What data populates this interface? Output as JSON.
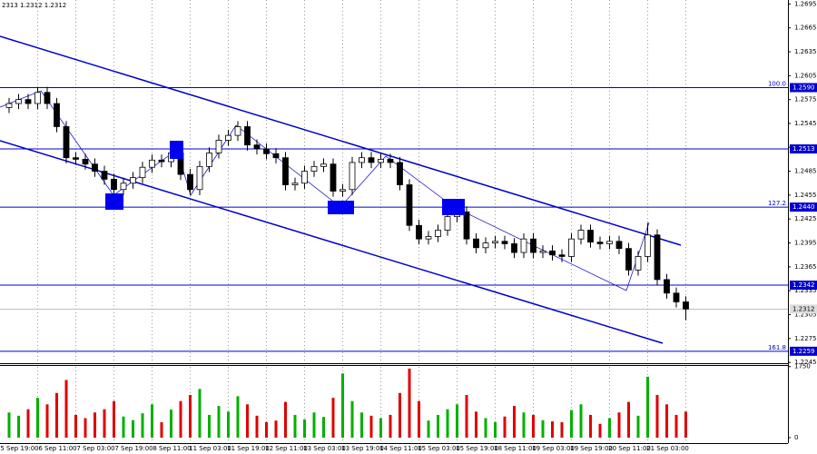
{
  "chart_data": {
    "type": "candlestick",
    "header": "2313 1.2312 1.2312",
    "categories": [
      null,
      null,
      null,
      "5 Sep 19:00",
      null,
      null,
      null,
      "6 Sep 11:00",
      null,
      null,
      null,
      "7 Sep 03:00",
      null,
      null,
      null,
      "7 Sep 19:00",
      null,
      null,
      null,
      "8 Sep 11:00",
      null,
      null,
      null,
      "11 Sep 03:00",
      null,
      null,
      null,
      "11 Sep 19:00",
      null,
      null,
      null,
      "12 Sep 11:00",
      null,
      null,
      null,
      "13 Sep 03:00",
      null,
      null,
      null,
      "13 Sep 19:00",
      null,
      null,
      null,
      "14 Sep 11:00",
      null,
      null,
      null,
      "15 Sep 03:00",
      null,
      null,
      null,
      "15 Sep 19:00",
      null,
      null,
      null,
      "18 Sep 11:00",
      null,
      null,
      null,
      "19 Sep 03:00",
      null,
      null,
      null,
      "19 Sep 19:00",
      null,
      null,
      null,
      "20 Sep 11:00",
      null,
      null,
      null,
      "21 Sep 03:00"
    ],
    "open": [
      1.2565,
      1.257,
      1.2575,
      1.257,
      1.2584,
      1.257,
      1.2541,
      1.2502,
      1.25,
      1.2494,
      1.2485,
      1.2475,
      1.2462,
      1.247,
      1.2477,
      1.249,
      1.2499,
      1.2497,
      1.2508,
      1.2481,
      1.2462,
      1.2491,
      1.2508,
      1.2524,
      1.253,
      1.2541,
      1.2518,
      1.2513,
      1.2507,
      1.2502,
      1.2468,
      1.247,
      1.2485,
      1.2491,
      1.2494,
      1.246,
      1.2462,
      1.2496,
      1.2502,
      1.2496,
      1.25,
      1.2496,
      1.2468,
      1.2417,
      1.24,
      1.2403,
      1.2411,
      1.2428,
      1.2434,
      1.24,
      1.2389,
      1.2395,
      1.2397,
      1.2394,
      1.2383,
      1.24,
      1.2383,
      1.2385,
      1.238,
      1.2378,
      1.24,
      1.2411,
      1.2396,
      1.2394,
      1.2397,
      1.2388,
      1.2361,
      1.2378,
      1.2405,
      1.2349,
      1.2332,
      1.2321
    ],
    "high": [
      1.2577,
      1.2582,
      1.2582,
      1.2591,
      1.2591,
      1.2577,
      1.2548,
      1.2509,
      1.2507,
      1.2501,
      1.2492,
      1.2482,
      1.2477,
      1.2484,
      1.2497,
      1.2506,
      1.2506,
      1.2515,
      1.2515,
      1.2488,
      1.2498,
      1.2515,
      1.2531,
      1.2537,
      1.2548,
      1.2548,
      1.2525,
      1.252,
      1.2514,
      1.2509,
      1.2477,
      1.2492,
      1.2498,
      1.2501,
      1.2501,
      1.2469,
      1.2503,
      1.2509,
      1.2509,
      1.2507,
      1.2507,
      1.2503,
      1.2475,
      1.2424,
      1.241,
      1.2418,
      1.2435,
      1.2441,
      1.2441,
      1.2407,
      1.2402,
      1.2404,
      1.2404,
      1.2401,
      1.2407,
      1.2407,
      1.2392,
      1.2392,
      1.2387,
      1.2407,
      1.2418,
      1.2418,
      1.2403,
      1.2404,
      1.2404,
      1.2395,
      1.2385,
      1.242,
      1.2412,
      1.2356,
      1.2339,
      1.2328
    ],
    "low": [
      1.2558,
      1.2563,
      1.2563,
      1.2563,
      1.2563,
      1.2534,
      1.2495,
      1.2493,
      1.2487,
      1.2478,
      1.2468,
      1.2455,
      1.2455,
      1.2463,
      1.247,
      1.2483,
      1.249,
      1.249,
      1.2474,
      1.2455,
      1.2455,
      1.2484,
      1.2501,
      1.2517,
      1.2523,
      1.2511,
      1.2506,
      1.25,
      1.2495,
      1.2461,
      1.2461,
      1.2463,
      1.2478,
      1.2484,
      1.2453,
      1.2453,
      1.2455,
      1.2489,
      1.2489,
      1.2489,
      1.2489,
      1.2461,
      1.241,
      1.2393,
      1.2393,
      1.2396,
      1.2404,
      1.2421,
      1.2393,
      1.2382,
      1.2382,
      1.2388,
      1.2387,
      1.2376,
      1.2376,
      1.2376,
      1.2376,
      1.2373,
      1.2371,
      1.2371,
      1.2393,
      1.2389,
      1.2387,
      1.2387,
      1.2381,
      1.2354,
      1.2354,
      1.2371,
      1.2342,
      1.2325,
      1.2314,
      1.2298
    ],
    "close": [
      1.257,
      1.2575,
      1.257,
      1.2584,
      1.257,
      1.2541,
      1.2502,
      1.25,
      1.2494,
      1.2485,
      1.2475,
      1.2462,
      1.247,
      1.2477,
      1.249,
      1.2499,
      1.2497,
      1.2508,
      1.2481,
      1.2462,
      1.2491,
      1.2508,
      1.2524,
      1.253,
      1.2541,
      1.2518,
      1.2513,
      1.2507,
      1.2502,
      1.2468,
      1.247,
      1.2485,
      1.2491,
      1.2494,
      1.246,
      1.2462,
      1.2496,
      1.2502,
      1.2496,
      1.25,
      1.2496,
      1.2468,
      1.2417,
      1.24,
      1.2403,
      1.2411,
      1.2428,
      1.2434,
      1.24,
      1.2389,
      1.2395,
      1.2397,
      1.2394,
      1.2383,
      1.24,
      1.2383,
      1.2385,
      1.238,
      1.2378,
      1.24,
      1.2411,
      1.2396,
      1.2394,
      1.2397,
      1.2388,
      1.2361,
      1.2378,
      1.2405,
      1.2349,
      1.2332,
      1.2321,
      1.2312
    ],
    "volume": [
      620,
      540,
      700,
      980,
      820,
      1100,
      1420,
      560,
      480,
      620,
      700,
      900,
      520,
      430,
      600,
      820,
      380,
      690,
      900,
      1050,
      1200,
      560,
      780,
      640,
      1020,
      820,
      540,
      380,
      420,
      880,
      560,
      450,
      620,
      510,
      980,
      1580,
      900,
      620,
      540,
      480,
      560,
      1100,
      1700,
      900,
      420,
      560,
      700,
      820,
      1050,
      640,
      480,
      380,
      520,
      780,
      620,
      560,
      430,
      400,
      380,
      680,
      820,
      560,
      340,
      480,
      620,
      880,
      540,
      1500,
      1050,
      820,
      560,
      640
    ],
    "candle_color": "#000000",
    "volume_up_color": "#00b000",
    "volume_down_color": "#e00000",
    "level_color": "#0000cc",
    "ylim": [
      1.2244,
      1.27
    ],
    "yticks": [
      1.2695,
      1.2665,
      1.2635,
      1.2605,
      1.2575,
      1.2545,
      1.2515,
      1.2485,
      1.2455,
      1.2425,
      1.2395,
      1.2365,
      1.2335,
      1.2305,
      1.2275,
      1.2245
    ],
    "levels": [
      {
        "value": 1.259,
        "label": "1.2590",
        "fib": "100.0"
      },
      {
        "value": 1.2513
      },
      {
        "value": 1.244,
        "label": "1.2440",
        "fib": "127.2"
      },
      {
        "value": 1.2342
      },
      {
        "value": 1.2259,
        "fib": "161.8"
      }
    ],
    "current_price": 1.2312,
    "volume_ylim": [
      0,
      1900
    ],
    "volume_yticks": [
      1750,
      0
    ],
    "grid": true
  }
}
